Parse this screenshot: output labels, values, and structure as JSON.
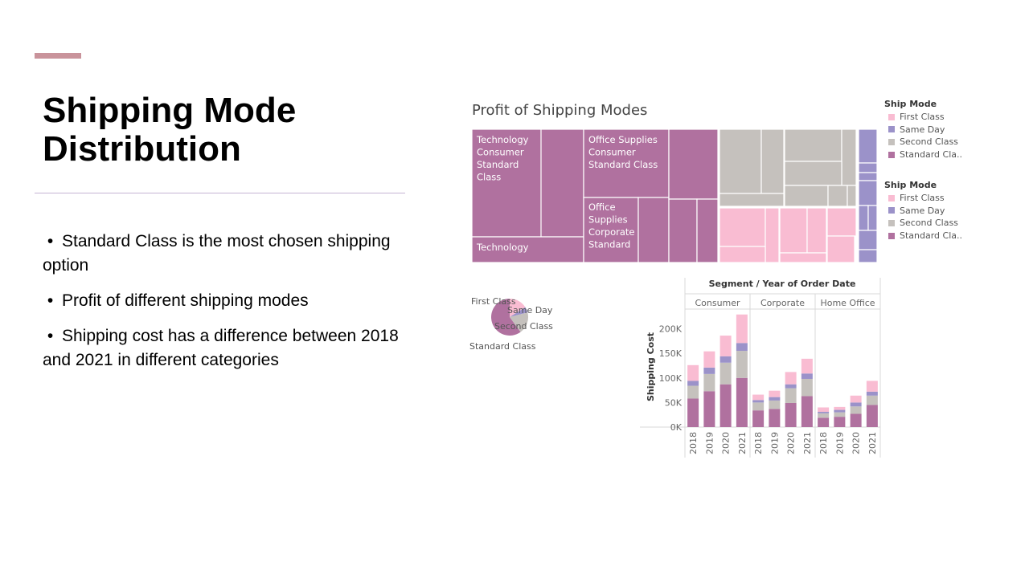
{
  "slide": {
    "title": "Shipping Mode Distribution",
    "bullets": [
      "Standard Class is the most chosen shipping option",
      "Profit of different shipping modes",
      "Shipping cost has a difference between 2018 and 2021 in different categories"
    ]
  },
  "colors": {
    "first_class": "#f9bcd2",
    "same_day": "#9b92c9",
    "second_class": "#c5c1bd",
    "standard_class": "#b0719f"
  },
  "legends": [
    {
      "title": "Ship Mode",
      "items": [
        "First Class",
        "Same Day",
        "Second Class",
        "Standard Cla.."
      ]
    },
    {
      "title": "Ship Mode",
      "items": [
        "First Class",
        "Same Day",
        "Second Class",
        "Standard Cla.."
      ]
    }
  ],
  "chart_data": [
    {
      "type": "treemap",
      "title": "Profit of Shipping Modes",
      "tile_labels": [
        "Technology Consumer Standard Class",
        "Technology",
        "Office Supplies Consumer Standard Class",
        "Office Supplies Corporate Standard"
      ],
      "shares": [
        {
          "name": "Standard Class",
          "value": 60
        },
        {
          "name": "Second Class",
          "value": 19
        },
        {
          "name": "First Class",
          "value": 16
        },
        {
          "name": "Same Day",
          "value": 5
        }
      ]
    },
    {
      "type": "pie",
      "labels": [
        "First Class",
        "Same Day",
        "Second Class",
        "Standard Class"
      ],
      "values": [
        16,
        5,
        19,
        60
      ]
    },
    {
      "type": "bar",
      "stacked": true,
      "title": "Segment / Year of Order Date",
      "ylabel": "Shipping Cost",
      "ylim": [
        0,
        240000
      ],
      "yticks": [
        0,
        50000,
        100000,
        150000,
        200000
      ],
      "ytick_labels": [
        "0K",
        "50K",
        "100K",
        "150K",
        "200K"
      ],
      "segments": [
        "Consumer",
        "Corporate",
        "Home Office"
      ],
      "years": [
        "2018",
        "2019",
        "2020",
        "2021"
      ],
      "series": [
        {
          "name": "Standard Class",
          "values": [
            [
              58000,
              73000,
              87000,
              100000
            ],
            [
              34000,
              37000,
              49000,
              63000
            ],
            [
              19000,
              21000,
              27000,
              45000
            ]
          ]
        },
        {
          "name": "Second Class",
          "values": [
            [
              26000,
              35000,
              44000,
              55000
            ],
            [
              16000,
              17000,
              30000,
              35000
            ],
            [
              9000,
              9000,
              15000,
              19000
            ]
          ]
        },
        {
          "name": "Same Day",
          "values": [
            [
              10000,
              13000,
              13000,
              16000
            ],
            [
              5000,
              7000,
              8000,
              11000
            ],
            [
              3000,
              5000,
              8000,
              8000
            ]
          ]
        },
        {
          "name": "First Class",
          "values": [
            [
              32000,
              33000,
              42000,
              58000
            ],
            [
              11000,
              13000,
              25000,
              30000
            ],
            [
              9000,
              6000,
              14000,
              22000
            ]
          ]
        }
      ]
    }
  ]
}
